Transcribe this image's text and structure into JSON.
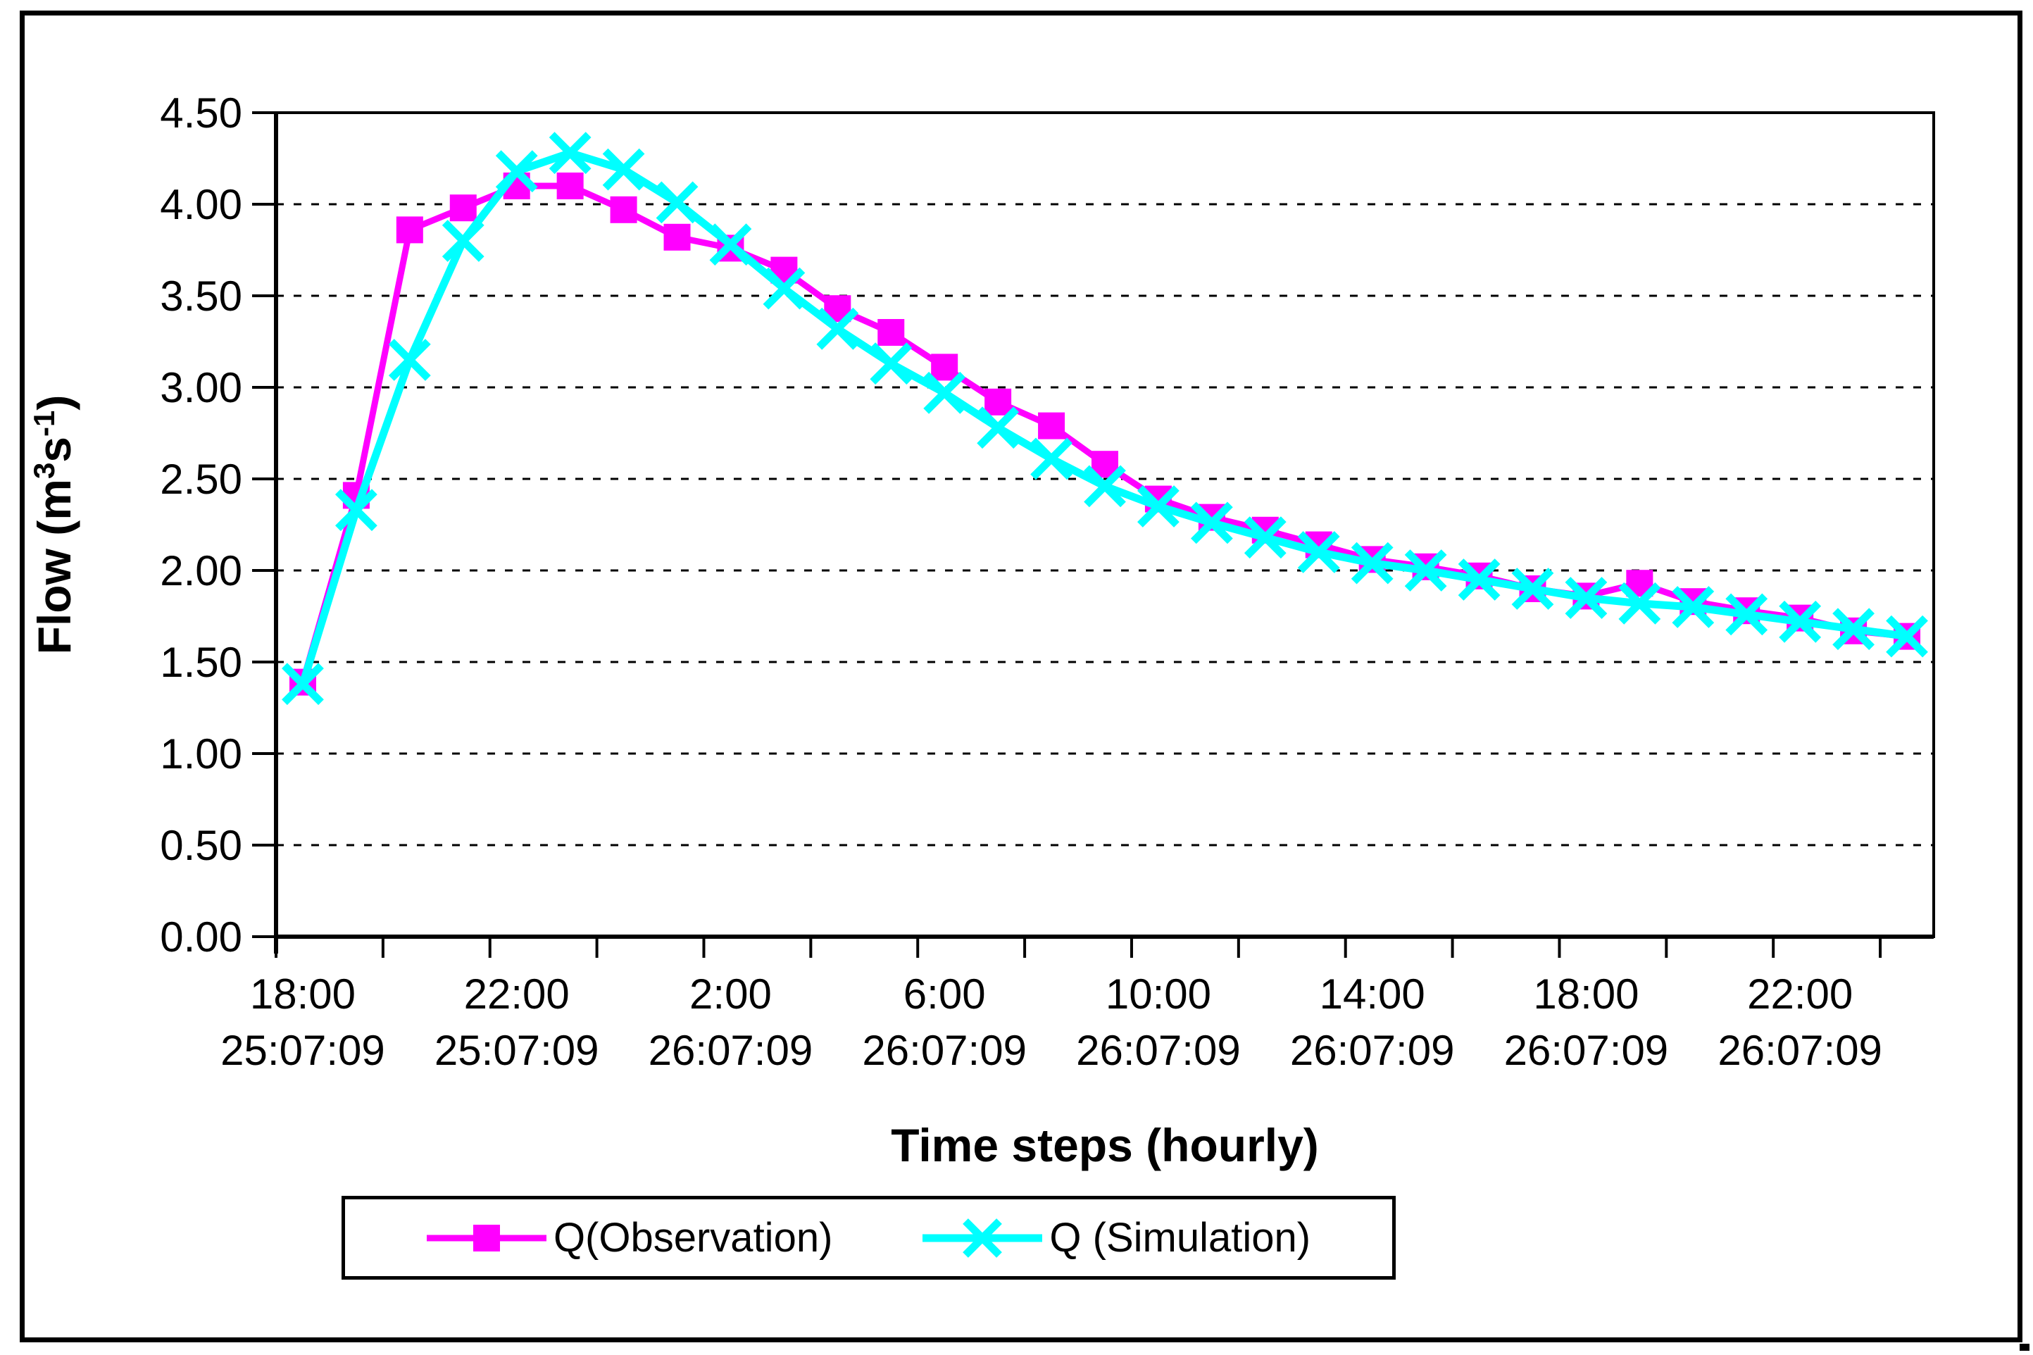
{
  "page": {
    "background": "#FFFFFF",
    "frame_color": "#000000"
  },
  "axes": {
    "y": {
      "title_prefix": "Flow (m",
      "title_sup1": "3",
      "title_mid": "s",
      "title_sup2": "-1",
      "title_suffix": ")",
      "tick_labels": [
        "0.00",
        "0.50",
        "1.00",
        "1.50",
        "2.00",
        "2.50",
        "3.00",
        "3.50",
        "4.00",
        "4.50"
      ]
    },
    "x": {
      "title": "Time steps (hourly)",
      "tick_labels": [
        {
          "time": "18:00",
          "date": "25:07:09"
        },
        {
          "time": "22:00",
          "date": "25:07:09"
        },
        {
          "time": "2:00",
          "date": "26:07:09"
        },
        {
          "time": "6:00",
          "date": "26:07:09"
        },
        {
          "time": "10:00",
          "date": "26:07:09"
        },
        {
          "time": "14:00",
          "date": "26:07:09"
        },
        {
          "time": "18:00",
          "date": "26:07:09"
        },
        {
          "time": "22:00",
          "date": "26:07:09"
        }
      ]
    }
  },
  "chart_data": {
    "type": "line",
    "title": "",
    "xlabel": "Time steps (hourly)",
    "ylabel": "Flow (m3 s-1)",
    "ylim": [
      0,
      4.5
    ],
    "ytick_step": 0.5,
    "grid": "horizontal-dashed",
    "legend_position": "bottom",
    "n_points": 31,
    "x_interval_hours": 1,
    "x_start_label": "18:00 25:07:09",
    "xtick_label_every_n_points": 4,
    "xtick_mark_every_n_points": 2,
    "series": [
      {
        "name": "Q(Observation)",
        "color": "#FF00FF",
        "marker": "square",
        "values": [
          1.39,
          2.41,
          3.86,
          3.98,
          4.1,
          4.1,
          3.97,
          3.82,
          3.76,
          3.64,
          3.43,
          3.3,
          3.11,
          2.92,
          2.79,
          2.58,
          2.39,
          2.29,
          2.22,
          2.14,
          2.06,
          2.02,
          1.97,
          1.9,
          1.86,
          1.93,
          1.83,
          1.78,
          1.74,
          1.67,
          1.64
        ]
      },
      {
        "name": "Q (Simulation)",
        "color": "#00FFFF",
        "marker": "x",
        "values": [
          1.38,
          2.33,
          3.15,
          3.8,
          4.18,
          4.28,
          4.19,
          4.01,
          3.78,
          3.54,
          3.32,
          3.13,
          2.97,
          2.78,
          2.61,
          2.46,
          2.35,
          2.26,
          2.18,
          2.1,
          2.04,
          2.0,
          1.95,
          1.9,
          1.85,
          1.82,
          1.8,
          1.76,
          1.72,
          1.68,
          1.64
        ]
      }
    ]
  }
}
